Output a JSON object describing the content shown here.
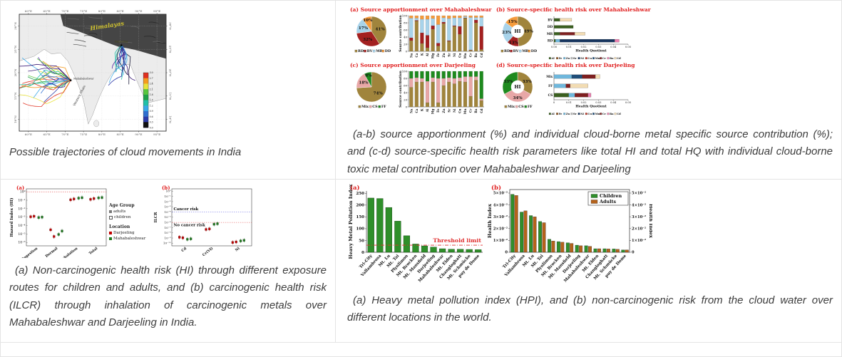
{
  "accent_red": "#e02020",
  "border_color": "#e4e4e4",
  "captions": {
    "map": "Possible trajectories of cloud movements in India",
    "source": "(a-b) source apportionment (%) and individual cloud-borne metal specific source contribution (%); and (c-d) source-specific health risk parameters like total HI and total HQ with individual cloud-borne toxic metal contribution over Mahabaleshwar and Darjeeling",
    "risk": "(a) Non-carcinogenic health risk (HI) through different exposure routes for children and adults, and (b) carcinogenic health risk (ILCR) through inhalation of carcinogenic metals over Mahabaleshwar and Darjeeling in India.",
    "hpi": "(a) Heavy metal pollution index (HPI), and (b) non-carcinogenic risk from the cloud water over different locations in the world."
  },
  "chart_data": [
    {
      "id": "map",
      "type": "map-trajectories",
      "top_ticks": [
        "60°E",
        "65°E",
        "70°E",
        "75°E",
        "80°E",
        "85°E",
        "90°E",
        "95°E"
      ],
      "bottom_ticks": [
        "60°E",
        "65°E",
        "70°E",
        "75°E",
        "80°E",
        "85°E",
        "90°E",
        "95°E"
      ],
      "left_ticks": [
        "30°N",
        "25°N",
        "20°N",
        "15°N",
        "10°N"
      ],
      "right_ticks": [
        "30°N",
        "25°N",
        "20°N",
        "15°N",
        "10°N"
      ],
      "region_label": "Himalayas",
      "range_label": "Western Ghats",
      "stations": [
        {
          "name": "Darjeeling",
          "fx": 0.695,
          "fy": 0.265
        },
        {
          "name": "Mahabaleshwar",
          "fx": 0.35,
          "fy": 0.565
        }
      ],
      "colorbar_ticks": [
        "3.0",
        "2.7",
        "2.4",
        "2.1",
        "1.8",
        "1.5",
        "1.2",
        "0.9",
        "0.6",
        "0.3",
        "0.0"
      ],
      "colorbar_colors": [
        "#e03020",
        "#f59b1e",
        "#e8e23a",
        "#58c63e",
        "#1fa048",
        "#20c0a8",
        "#38a8e8",
        "#2f6fd0",
        "#2b3aa8",
        "#321070"
      ],
      "trajectory_colors_west": [
        "#e03020",
        "#f59b1e",
        "#e8e23a",
        "#58c63e",
        "#1fa048",
        "#20c0a8",
        "#38a8e8",
        "#2f6fd0",
        "#2b3aa8",
        "#4a1f9e",
        "#321070"
      ],
      "trajectory_colors_east": [
        "#38a8e8",
        "#2f6fd0",
        "#2b3aa8",
        "#4a1f9e",
        "#321070",
        "#20c0a8",
        "#1b1b3a"
      ]
    },
    {
      "id": "pie_a",
      "type": "pie",
      "title": "(a)  Source apportionment over Mahabaleshwar",
      "labels": [
        "RD",
        "BV",
        "MR",
        "DD"
      ],
      "values": [
        41,
        32,
        17,
        10
      ],
      "colors": [
        "#a0843c",
        "#a32020",
        "#a8d3ea",
        "#f59b3c"
      ]
    },
    {
      "id": "bars_a",
      "type": "stacked-bar",
      "ylabel": "Source contribution",
      "ylim": [
        0,
        100
      ],
      "yticks": [
        0,
        20,
        40,
        60,
        80,
        100
      ],
      "categories": [
        "Na",
        "Ca",
        "K",
        "Al",
        "Mg",
        "Fe",
        "Zn",
        "Sr",
        "Ni",
        "Cu",
        "Mn",
        "Cr",
        "Ba",
        "Cd"
      ],
      "series": [
        {
          "name": "RD",
          "color": "#a0843c",
          "values": [
            30,
            85,
            22,
            10,
            62,
            15,
            78,
            28,
            70,
            48,
            93,
            3,
            80,
            5
          ]
        },
        {
          "name": "BV",
          "color": "#a32020",
          "values": [
            8,
            2,
            30,
            35,
            10,
            8,
            4,
            2,
            2,
            22,
            1,
            1,
            8,
            65
          ]
        },
        {
          "name": "MR",
          "color": "#a8d3ea",
          "values": [
            55,
            6,
            38,
            45,
            20,
            52,
            12,
            62,
            22,
            24,
            4,
            91,
            7,
            25
          ]
        },
        {
          "name": "DD",
          "color": "#f59b3c",
          "values": [
            7,
            7,
            10,
            10,
            8,
            25,
            6,
            8,
            6,
            6,
            2,
            5,
            5,
            5
          ]
        }
      ]
    },
    {
      "id": "donut_b",
      "type": "pie",
      "donut": true,
      "center": "HI",
      "title": "(b)  Source-specific health risk over Mahabaleshwar",
      "labels": [
        "RD",
        "BV",
        "MR",
        "DD"
      ],
      "values": [
        49,
        13,
        23,
        15
      ],
      "colors": [
        "#a0843c",
        "#a32020",
        "#a8d3ea",
        "#f59b3c"
      ]
    },
    {
      "id": "hbars_b",
      "type": "hbar-stacked",
      "xlabel": "Health Quotient",
      "xlim": [
        0,
        0.05
      ],
      "xticks": [
        "0.00",
        "0.01",
        "0.02",
        "0.03",
        "0.04",
        "0.05"
      ],
      "rows": [
        "BV",
        "DD",
        "MR",
        "RD"
      ],
      "legend": [
        "Al",
        "Fe",
        "Zn",
        "Sr",
        "Ni",
        "Cu",
        "Mn",
        "Cr",
        "Ba",
        "Cd"
      ],
      "metal_colors": {
        "Al": "#3a5f1f",
        "Fe": "#8b4a12",
        "Zn": "#6fb7dc",
        "Sr": "#b8b8b8",
        "Ni": "#16355e",
        "Cu": "#c03a2b",
        "Mn": "#1f4e79",
        "Cr": "#7e1f1f",
        "Ba": "#e87fae",
        "Cd": "#f2dcb3"
      },
      "segments": {
        "BV": [
          [
            "Al",
            0.004
          ],
          [
            "Cd",
            0.008
          ]
        ],
        "DD": [
          [
            "Al",
            0.013
          ]
        ],
        "MR": [
          [
            "Al",
            0.004
          ],
          [
            "Cr",
            0.01
          ],
          [
            "Cd",
            0.007
          ]
        ],
        "RD": [
          [
            "Al",
            0.001
          ],
          [
            "Zn",
            0.003
          ],
          [
            "Ni",
            0.037
          ],
          [
            "Ba",
            0.003
          ]
        ]
      }
    },
    {
      "id": "pie_c",
      "type": "pie",
      "title": "(c)  Source apportionment over Darjeeling",
      "labels": [
        "Mix",
        "CS",
        "FF"
      ],
      "values": [
        74,
        18,
        8
      ],
      "colors": [
        "#a0843c",
        "#e8a7a7",
        "#1e8a1e"
      ]
    },
    {
      "id": "bars_c",
      "type": "stacked-bar",
      "ylabel": "Source contribution",
      "ylim": [
        0,
        100
      ],
      "yticks": [
        0,
        20,
        40,
        60,
        80,
        100
      ],
      "categories": [
        "Na",
        "Ca",
        "K",
        "Al",
        "Mg",
        "Fe",
        "Zn",
        "Sr",
        "Ni",
        "Cu",
        "Mn",
        "Cr",
        "Ba",
        "Cd"
      ],
      "series": [
        {
          "name": "Mix",
          "color": "#a0843c",
          "values": [
            55,
            70,
            70,
            12,
            70,
            12,
            60,
            70,
            65,
            72,
            70,
            30,
            75,
            18
          ]
        },
        {
          "name": "CS",
          "color": "#e8a7a7",
          "values": [
            25,
            12,
            10,
            60,
            12,
            68,
            20,
            12,
            15,
            10,
            15,
            55,
            10,
            5
          ]
        },
        {
          "name": "FF",
          "color": "#1e8a1e",
          "values": [
            20,
            18,
            20,
            28,
            18,
            20,
            20,
            18,
            20,
            18,
            15,
            15,
            15,
            77
          ]
        }
      ]
    },
    {
      "id": "donut_d",
      "type": "pie",
      "donut": true,
      "center": "HI",
      "title": "(d)  Source-specific health risk over Darjeeling",
      "labels": [
        "Mix",
        "CS",
        "FF"
      ],
      "values": [
        33,
        34,
        33
      ],
      "colors": [
        "#a0843c",
        "#e8a7a7",
        "#1e8a1e"
      ]
    },
    {
      "id": "hbars_d",
      "type": "hbar-stacked",
      "xlabel": "Health Quotient",
      "xlim": [
        0,
        0.05
      ],
      "xticks": [
        "0",
        "0.01",
        "0.02",
        "0.03",
        "0.04",
        "0.05"
      ],
      "rows": [
        "Mix",
        "FF",
        "CS"
      ],
      "legend": [
        "Al",
        "Fe",
        "Zn",
        "Sr",
        "Ni",
        "Cu",
        "Mn",
        "Cr",
        "Ba",
        "Cd"
      ],
      "metal_colors": {
        "Al": "#3a5f1f",
        "Fe": "#8b4a12",
        "Zn": "#6fb7dc",
        "Sr": "#b8b8b8",
        "Ni": "#16355e",
        "Cu": "#c03a2b",
        "Mn": "#1f4e79",
        "Cr": "#7e1f1f",
        "Ba": "#e87fae",
        "Cd": "#f2dcb3"
      },
      "segments": {
        "Mix": [
          [
            "Zn",
            0.012
          ],
          [
            "Mn",
            0.007
          ],
          [
            "Cr",
            0.009
          ],
          [
            "Cd",
            0.003
          ]
        ],
        "FF": [
          [
            "Zn",
            0.008
          ],
          [
            "Cr",
            0.003
          ],
          [
            "Cd",
            0.012
          ]
        ],
        "CS": [
          [
            "Al",
            0.01
          ],
          [
            "Zn",
            0.004
          ],
          [
            "Cr",
            0.009
          ],
          [
            "Ba",
            0.002
          ]
        ]
      }
    },
    {
      "id": "scatter_a",
      "type": "scatter",
      "tag": "(a)",
      "ylabel": "Hazard Index (HI)",
      "ytick_labels": [
        "10⁰",
        "10⁻¹",
        "10⁻²",
        "10⁻³",
        "10⁻⁴",
        "10⁻⁵",
        "10⁻⁶"
      ],
      "ytick_exps": [
        0,
        -1,
        -2,
        -3,
        -4,
        -5,
        -6
      ],
      "ymax_exp": 0.35,
      "ymin_exp": -6.4,
      "categories": [
        "Ingestion",
        "Dermal",
        "Inhalation",
        "Total"
      ],
      "reflines": [
        {
          "exp": 0,
          "color": "#e04040"
        }
      ],
      "point_exps": {
        "Ingestion": [
          -2.95,
          -2.9,
          -3.05,
          -3.0
        ],
        "Dermal": [
          -4.5,
          -5.3,
          -5.05,
          -4.65
        ],
        "Inhalation": [
          -0.95,
          -0.85,
          -0.75,
          -0.7
        ],
        "Total": [
          -0.9,
          -0.8,
          -0.72,
          -0.68
        ]
      },
      "point_colors": [
        "#c00000",
        "#c00000",
        "#1e7a1e",
        "#1e7a1e"
      ],
      "legend": {
        "age_title": "Age Group",
        "ages": [
          "adults",
          "children"
        ],
        "loc_title": "Location",
        "locations": [
          {
            "name": "Darjeeling",
            "color": "#c00000"
          },
          {
            "name": "Mahabaleshwar",
            "color": "#1e7a1e"
          }
        ]
      }
    },
    {
      "id": "scatter_b",
      "type": "scatter",
      "tag": "(b)",
      "ylabel": "ILCR",
      "ytick_labels": [
        "10⁰",
        "10⁻¹",
        "10⁻²",
        "10⁻³",
        "10⁻⁴",
        "10⁻⁵",
        "10⁻⁶",
        "10⁻⁷",
        "10⁻⁸",
        "10⁻⁹",
        "10⁻¹⁰"
      ],
      "ytick_exps": [
        0,
        -1,
        -2,
        -3,
        -4,
        -5,
        -6,
        -7,
        -8,
        -9,
        -10
      ],
      "ymax_exp": 0.45,
      "ymin_exp": -10.5,
      "categories": [
        "Cd",
        "Cr(VI)",
        "Ni"
      ],
      "reflines": [
        {
          "exp": -4,
          "color": "#5050e0",
          "label": "Cancer risk",
          "label_pos": "above"
        },
        {
          "exp": -6,
          "color": "#e04040",
          "label": "No cancer risk",
          "label_pos": "below"
        }
      ],
      "point_exps": {
        "Cd": [
          -8.85,
          -8.95,
          -9.25,
          -9.15
        ],
        "Cr(VI)": [
          -7.35,
          -7.25,
          -6.35,
          -6.25
        ],
        "Ni": [
          -9.85,
          -9.75,
          -9.55,
          -9.45
        ]
      },
      "point_colors": [
        "#c00000",
        "#c00000",
        "#1e7a1e",
        "#1e7a1e"
      ]
    },
    {
      "id": "hpi_bars",
      "type": "bar",
      "tag": "(a)",
      "ylabel": "Heavy Metal Pollution Index",
      "yticks": [
        0,
        50,
        100,
        150,
        200,
        250
      ],
      "ylim": [
        0,
        260
      ],
      "bar_color": "#2f8f2a",
      "categories": [
        "Tri-City",
        "Vallambrosa",
        "Mt. Lu",
        "Mt. Tai",
        "Plynlimon",
        "Mt. Brocken",
        "Mt. Mansfield",
        "Darjeeling",
        "Mahabaleshwar",
        "Mt. Elden",
        "Changlaghatt",
        "Mt. Schmücke",
        "puy de Dome"
      ],
      "values": [
        230,
        228,
        190,
        132,
        70,
        35,
        27,
        22,
        15,
        13,
        13,
        12,
        11
      ],
      "threshold": {
        "value": 30,
        "label": "Threshold limit",
        "color": "#e03030"
      }
    },
    {
      "id": "hi_bars",
      "type": "bar-grouped",
      "tag": "(b)",
      "ylabel": "Health Index",
      "ylabel_right": "Health Index",
      "unit": "×10⁻²",
      "ytick_labels": [
        "0",
        "1×10⁻²",
        "2×10⁻²",
        "3×10⁻²",
        "4×10⁻²",
        "5×10⁻²"
      ],
      "ytick_values": [
        0,
        1,
        2,
        3,
        4,
        5
      ],
      "ylim": [
        0,
        5.3
      ],
      "categories": [
        "Tri-City",
        "Vallambrosa",
        "Mt. Lu",
        "Mt. Tai",
        "Plynlimon",
        "Mt. Brocken",
        "Mt. Mansfield",
        "Darjeeling",
        "Mahabaleshwar",
        "Mt. Elden",
        "Changlaghatt",
        "Mt. Schmücke",
        "puy de Dome"
      ],
      "series": [
        {
          "name": "Children",
          "color": "#2f8f2a",
          "values": [
            4.9,
            3.4,
            3.1,
            2.6,
            1.1,
            0.9,
            0.8,
            0.6,
            0.55,
            0.3,
            0.3,
            0.28,
            0.2
          ]
        },
        {
          "name": "Adults",
          "color": "#b5621b",
          "values": [
            4.8,
            3.5,
            3.0,
            2.5,
            0.95,
            0.85,
            0.75,
            0.55,
            0.5,
            0.3,
            0.28,
            0.25,
            0.2
          ]
        }
      ]
    }
  ]
}
